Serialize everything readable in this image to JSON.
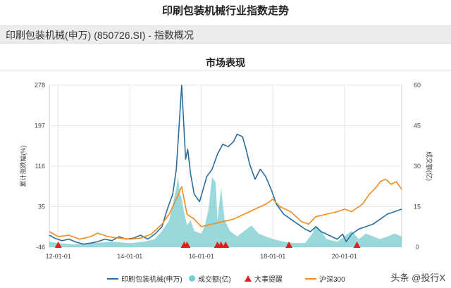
{
  "page_title": "印刷包装机械行业指数走势",
  "sub_title": "印刷包装机械(申万) (850726.SI) - 指数概况",
  "section_title": "市场表现",
  "watermark": "头条 @投行X",
  "colors": {
    "index": "#2a6e9c",
    "volume": "#77cccf",
    "events": "#e0201b",
    "hs300": "#f08c1f"
  },
  "chart_data": {
    "type": "line",
    "y_left": {
      "label": "累计涨跌幅(%)",
      "ticks": [
        278,
        197,
        116,
        35,
        -46
      ],
      "range": [
        -46,
        278
      ]
    },
    "y_right": {
      "label": "成交额(亿)",
      "ticks": [
        60,
        45,
        30,
        15,
        0
      ],
      "range": [
        0,
        60
      ]
    },
    "x_range": [
      2011.75,
      2021.6
    ],
    "x_ticks": [
      {
        "label": "12-01-01",
        "value": 2012.0
      },
      {
        "label": "14-01-01",
        "value": 2014.0
      },
      {
        "label": "16-01-01",
        "value": 2016.0
      },
      {
        "label": "18-01-01",
        "value": 2018.0
      },
      {
        "label": "20-01-01",
        "value": 2020.0
      }
    ],
    "legend": [
      "印刷包装机械(申万)",
      "成交额(亿)",
      "大事提醒",
      "沪深300"
    ],
    "series": [
      {
        "name": "印刷包装机械(申万)",
        "axis": "left",
        "x": [
          2011.75,
          2011.9,
          2012.1,
          2012.3,
          2012.5,
          2012.7,
          2012.9,
          2013.1,
          2013.3,
          2013.5,
          2013.7,
          2013.9,
          2014.1,
          2014.3,
          2014.5,
          2014.7,
          2014.9,
          2015.05,
          2015.2,
          2015.3,
          2015.38,
          2015.45,
          2015.5,
          2015.56,
          2015.62,
          2015.7,
          2015.8,
          2015.95,
          2016.05,
          2016.15,
          2016.3,
          2016.45,
          2016.6,
          2016.75,
          2016.9,
          2017.0,
          2017.15,
          2017.25,
          2017.35,
          2017.5,
          2017.65,
          2017.8,
          2017.95,
          2018.1,
          2018.3,
          2018.5,
          2018.7,
          2018.9,
          2019.05,
          2019.2,
          2019.35,
          2019.5,
          2019.65,
          2019.8,
          2019.95,
          2020.05,
          2020.2,
          2020.4,
          2020.6,
          2020.8,
          2021.0,
          2021.2,
          2021.4,
          2021.6
        ],
        "values": [
          -22,
          -28,
          -33,
          -30,
          -36,
          -40,
          -38,
          -35,
          -30,
          -33,
          -25,
          -30,
          -28,
          -22,
          -30,
          -20,
          -5,
          30,
          60,
          110,
          200,
          278,
          210,
          130,
          150,
          100,
          60,
          45,
          70,
          95,
          110,
          140,
          160,
          155,
          165,
          180,
          175,
          150,
          120,
          90,
          110,
          95,
          70,
          40,
          20,
          10,
          0,
          -10,
          -15,
          -5,
          -15,
          -20,
          -25,
          -30,
          -20,
          -35,
          -20,
          -10,
          -5,
          0,
          10,
          20,
          25,
          30
        ]
      },
      {
        "name": "沪深300",
        "axis": "left",
        "x": [
          2011.75,
          2012.0,
          2012.3,
          2012.6,
          2012.9,
          2013.1,
          2013.4,
          2013.7,
          2014.0,
          2014.3,
          2014.6,
          2014.9,
          2015.1,
          2015.3,
          2015.45,
          2015.6,
          2015.8,
          2016.0,
          2016.3,
          2016.6,
          2016.9,
          2017.2,
          2017.5,
          2017.8,
          2018.0,
          2018.2,
          2018.5,
          2018.8,
          2019.0,
          2019.2,
          2019.5,
          2019.8,
          2020.0,
          2020.2,
          2020.5,
          2020.7,
          2020.9,
          2021.0,
          2021.15,
          2021.3,
          2021.45,
          2021.6
        ],
        "values": [
          -15,
          -25,
          -22,
          -30,
          -25,
          -18,
          -25,
          -28,
          -30,
          -28,
          -20,
          0,
          20,
          50,
          75,
          20,
          10,
          -5,
          0,
          5,
          10,
          20,
          30,
          40,
          50,
          35,
          25,
          5,
          0,
          15,
          20,
          25,
          30,
          25,
          40,
          60,
          75,
          85,
          90,
          80,
          85,
          70
        ]
      },
      {
        "name": "成交额(亿)",
        "axis": "right",
        "type": "area",
        "x": [
          2011.75,
          2012.0,
          2012.5,
          2013.0,
          2013.5,
          2014.0,
          2014.4,
          2014.7,
          2014.9,
          2015.1,
          2015.2,
          2015.3,
          2015.35,
          2015.4,
          2015.45,
          2015.5,
          2015.6,
          2015.7,
          2015.8,
          2016.0,
          2016.1,
          2016.2,
          2016.3,
          2016.4,
          2016.45,
          2016.55,
          2016.65,
          2016.8,
          2017.0,
          2017.2,
          2017.4,
          2017.6,
          2017.8,
          2018.0,
          2018.3,
          2018.6,
          2018.9,
          2019.1,
          2019.2,
          2019.35,
          2019.5,
          2019.8,
          2020.0,
          2020.2,
          2020.4,
          2020.6,
          2020.8,
          2021.0,
          2021.2,
          2021.4,
          2021.6
        ],
        "values": [
          2,
          1.5,
          1,
          1.5,
          2,
          1.5,
          2,
          3,
          6,
          10,
          16,
          22,
          26,
          20,
          18,
          14,
          8,
          10,
          6,
          5,
          8,
          14,
          26,
          24,
          10,
          22,
          10,
          6,
          4,
          6,
          8,
          5,
          4,
          3,
          2,
          1.5,
          1.5,
          5,
          8,
          6,
          3,
          2,
          4,
          6,
          3,
          5,
          4,
          3,
          4,
          5,
          4
        ]
      }
    ],
    "events": [
      2012.0,
      2015.52,
      2015.6,
      2016.45,
      2016.55,
      2016.68,
      2018.45,
      2020.35
    ]
  }
}
